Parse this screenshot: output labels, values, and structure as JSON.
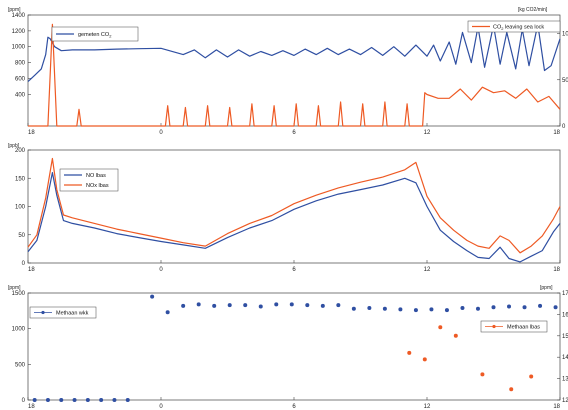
{
  "colors": {
    "blue": "#2f4fa2",
    "orange": "#ee5a24",
    "frame": "#444444"
  },
  "chart_data": [
    {
      "type": "line",
      "y_unit_left": "[ppm]",
      "y_unit_right": "[kg CO2/min]",
      "x_ticks": [
        "18",
        "0",
        "6",
        "12",
        "18"
      ],
      "x_tick_values": [
        18,
        24,
        30,
        36,
        42
      ],
      "xlim": [
        18,
        42
      ],
      "ylim": [
        0,
        1400
      ],
      "y_ticks": [
        400,
        600,
        800,
        1000,
        1200,
        1400
      ],
      "y_tick_labels": [
        "400",
        "600",
        "800",
        "1000",
        "1200",
        "1400"
      ],
      "y2lim": [
        0,
        120
      ],
      "y2_ticks": [
        0,
        50,
        100
      ],
      "y2_tick_labels": [
        "0",
        "50",
        "100"
      ],
      "grid": false,
      "series": [
        {
          "name": "gemeten CO2",
          "name_base": "gemeten CO",
          "name_sub": "2",
          "axis": "left",
          "color": "blue",
          "legend_position": "top-left",
          "x": [
            18,
            18.3,
            18.6,
            18.8,
            18.9,
            19.0,
            19.2,
            19.5,
            20,
            21,
            22,
            23,
            24,
            25,
            25.5,
            26,
            26.5,
            27,
            27.5,
            28,
            28.5,
            29,
            29.5,
            30,
            30.5,
            31,
            31.5,
            32,
            32.5,
            33,
            33.5,
            34,
            34.5,
            35,
            35.5,
            36,
            36.3,
            36.6,
            37,
            37.3,
            37.6,
            38,
            38.3,
            38.6,
            39,
            39.3,
            39.6,
            40,
            40.3,
            40.6,
            41,
            41.3,
            41.6,
            42
          ],
          "y": [
            560,
            640,
            720,
            900,
            1120,
            1100,
            1000,
            950,
            960,
            960,
            970,
            975,
            980,
            900,
            960,
            860,
            960,
            870,
            960,
            880,
            940,
            890,
            950,
            890,
            970,
            900,
            980,
            900,
            970,
            900,
            990,
            890,
            1000,
            880,
            1020,
            880,
            1020,
            820,
            1060,
            780,
            1180,
            800,
            1250,
            740,
            1270,
            780,
            1180,
            720,
            1220,
            760,
            1280,
            700,
            760,
            1100
          ]
        },
        {
          "name": "CO2 leaving sea lock",
          "name_base": "CO",
          "name_sub": "2",
          "name_tail": " leaving sea lock",
          "axis": "right",
          "color": "orange",
          "legend_position": "top-right",
          "x": [
            18,
            18.9,
            19.1,
            19.3,
            19.5,
            20.2,
            20.3,
            20.4,
            20.6,
            24,
            24.2,
            24.3,
            24.4,
            24.6,
            25,
            25.1,
            25.2,
            25.4,
            26,
            26.1,
            26.2,
            26.4,
            27,
            27.1,
            27.2,
            27.4,
            28,
            28.1,
            28.2,
            28.4,
            29,
            29.1,
            29.2,
            29.4,
            30,
            30.1,
            30.2,
            30.4,
            31,
            31.1,
            31.2,
            31.4,
            32,
            32.1,
            32.2,
            32.4,
            33,
            33.1,
            33.2,
            33.4,
            34,
            34.1,
            34.2,
            34.4,
            35,
            35.1,
            35.2,
            35.4,
            35.8,
            35.9,
            36,
            36.5,
            37,
            37.5,
            38,
            38.5,
            39,
            39.5,
            40,
            40.5,
            41,
            41.5,
            42
          ],
          "y": [
            0,
            0,
            110,
            0,
            0,
            0,
            18,
            0,
            0,
            0,
            0,
            22,
            0,
            0,
            0,
            20,
            0,
            0,
            0,
            22,
            0,
            0,
            0,
            20,
            0,
            0,
            0,
            24,
            0,
            0,
            0,
            22,
            0,
            0,
            0,
            24,
            0,
            0,
            0,
            22,
            0,
            0,
            0,
            26,
            0,
            0,
            0,
            24,
            0,
            0,
            0,
            26,
            0,
            0,
            0,
            24,
            0,
            0,
            0,
            36,
            34,
            30,
            30,
            40,
            28,
            42,
            36,
            38,
            30,
            40,
            26,
            32,
            18
          ]
        }
      ]
    },
    {
      "type": "line",
      "y_unit_left": "[ppb]",
      "x_ticks": [
        "18",
        "0",
        "6",
        "12",
        "18"
      ],
      "x_tick_values": [
        18,
        24,
        30,
        36,
        42
      ],
      "xlim": [
        18,
        42
      ],
      "ylim": [
        0,
        200
      ],
      "y_ticks": [
        0,
        50,
        100,
        150,
        200
      ],
      "y_tick_labels": [
        "0",
        "50",
        "100",
        "150",
        "200"
      ],
      "grid": false,
      "series": [
        {
          "name": "NO lbas",
          "color": "blue",
          "x": [
            18,
            18.4,
            18.8,
            19.1,
            19.3,
            19.6,
            20,
            21,
            22,
            23,
            24,
            25,
            26,
            27,
            28,
            29,
            30,
            31,
            32,
            33,
            34,
            35,
            35.5,
            36,
            36.6,
            37.2,
            37.8,
            38.3,
            38.8,
            39.3,
            39.7,
            40.2,
            40.7,
            41.2,
            41.7,
            42
          ],
          "y": [
            20,
            40,
            100,
            160,
            120,
            75,
            70,
            62,
            52,
            45,
            38,
            32,
            26,
            45,
            62,
            75,
            95,
            110,
            122,
            130,
            138,
            150,
            142,
            100,
            58,
            38,
            22,
            10,
            8,
            28,
            8,
            2,
            12,
            22,
            55,
            70
          ]
        },
        {
          "name": "NOx lbas",
          "color": "orange",
          "x": [
            18,
            18.4,
            18.8,
            19.1,
            19.3,
            19.6,
            20,
            21,
            22,
            23,
            24,
            25,
            26,
            27,
            28,
            29,
            30,
            31,
            32,
            33,
            34,
            35,
            35.5,
            36,
            36.6,
            37.2,
            37.8,
            38.3,
            38.8,
            39.3,
            39.7,
            40.2,
            40.7,
            41.2,
            41.7,
            42
          ],
          "y": [
            28,
            50,
            115,
            185,
            130,
            85,
            80,
            70,
            60,
            52,
            44,
            36,
            30,
            52,
            70,
            84,
            105,
            120,
            133,
            143,
            152,
            165,
            178,
            118,
            80,
            58,
            40,
            30,
            26,
            48,
            40,
            18,
            30,
            48,
            78,
            100
          ]
        }
      ]
    },
    {
      "type": "scatter",
      "y_unit_left": "[ppm]",
      "y_unit_right": "[ppm]",
      "x_ticks": [
        "18",
        "0",
        "6",
        "12",
        "18"
      ],
      "x_tick_values": [
        18,
        24,
        30,
        36,
        42
      ],
      "xlim": [
        18,
        42
      ],
      "ylim": [
        0,
        1500
      ],
      "y_ticks": [
        0,
        500,
        1000,
        1500
      ],
      "y_tick_labels": [
        "0",
        "500",
        "1000",
        "1500"
      ],
      "y2lim": [
        12,
        17
      ],
      "y2_ticks": [
        12,
        13,
        14,
        15,
        16,
        17
      ],
      "y2_tick_labels": [
        "12",
        "13",
        "14",
        "15",
        "16",
        "17"
      ],
      "grid": false,
      "series": [
        {
          "name": "Methaan wkk",
          "axis": "left",
          "color": "blue",
          "marker": "circle",
          "legend_position": "top-left",
          "x": [
            18.3,
            18.9,
            19.5,
            20.1,
            20.7,
            21.3,
            21.9,
            22.5,
            23.6,
            24.3,
            25.0,
            25.7,
            26.4,
            27.1,
            27.8,
            28.5,
            29.2,
            29.9,
            30.6,
            31.3,
            32.0,
            32.7,
            33.4,
            34.1,
            34.8,
            35.5,
            36.2,
            36.9,
            37.6,
            38.3,
            39.0,
            39.7,
            40.4,
            41.1,
            41.8
          ],
          "y": [
            0,
            0,
            0,
            0,
            0,
            0,
            0,
            0,
            1450,
            1230,
            1320,
            1340,
            1320,
            1330,
            1330,
            1310,
            1340,
            1340,
            1330,
            1320,
            1330,
            1280,
            1290,
            1280,
            1270,
            1260,
            1270,
            1260,
            1290,
            1280,
            1300,
            1310,
            1300,
            1320,
            1300
          ]
        },
        {
          "name": "Methaan lbas",
          "axis": "right",
          "color": "orange",
          "marker": "circle",
          "legend_position": "right",
          "x": [
            35.2,
            35.9,
            36.6,
            37.3,
            38.5,
            39.8,
            40.7
          ],
          "y": [
            14.2,
            13.9,
            15.4,
            15.0,
            13.2,
            12.5,
            13.1
          ]
        }
      ]
    }
  ]
}
